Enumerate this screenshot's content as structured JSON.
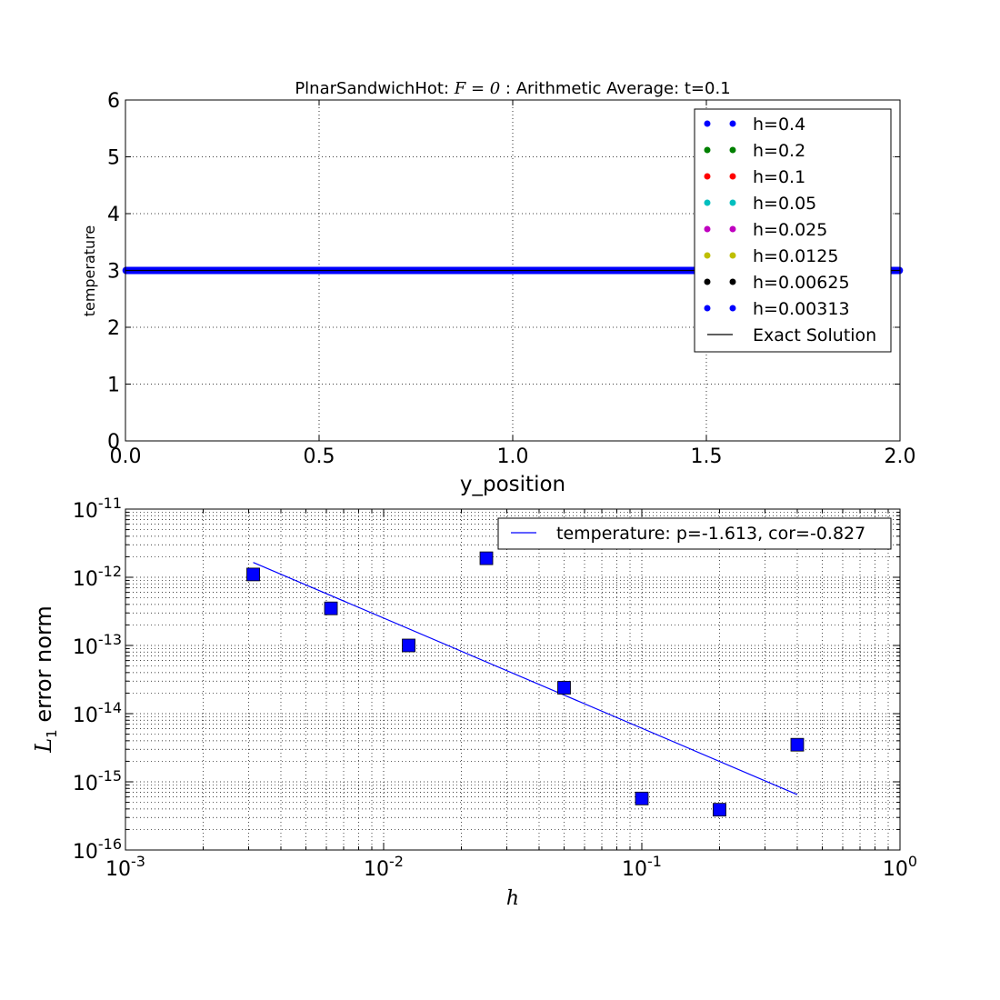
{
  "chart_data": [
    {
      "type": "scatter",
      "title": {
        "prefix": "PlnarSandwichHot: ",
        "math": "F = 0",
        "suffix": " : Arithmetic Average: t=0.1"
      },
      "xlabel": "y_position",
      "ylabel": "temperature",
      "xlim": [
        0,
        2
      ],
      "ylim": [
        0,
        6
      ],
      "xticks": [
        0,
        0.5,
        1,
        1.5,
        2
      ],
      "xtick_labels": [
        "0.0",
        "0.5",
        "1.0",
        "1.5",
        "2.0"
      ],
      "yticks": [
        0,
        1,
        2,
        3,
        4,
        5,
        6
      ],
      "ytick_labels": [
        "0",
        "1",
        "2",
        "3",
        "4",
        "5",
        "6"
      ],
      "grid": true,
      "legend_position": "top-right",
      "series": [
        {
          "name": "h=0.4",
          "color": "#0000ff",
          "marker": "dot",
          "h": 0.4,
          "y": 3.0
        },
        {
          "name": "h=0.2",
          "color": "#008000",
          "marker": "dot",
          "h": 0.2,
          "y": 3.0
        },
        {
          "name": "h=0.1",
          "color": "#ff0000",
          "marker": "dot",
          "h": 0.1,
          "y": 3.0
        },
        {
          "name": "h=0.05",
          "color": "#00bfbf",
          "marker": "dot",
          "h": 0.05,
          "y": 3.0
        },
        {
          "name": "h=0.025",
          "color": "#bf00bf",
          "marker": "dot",
          "h": 0.025,
          "y": 3.0
        },
        {
          "name": "h=0.0125",
          "color": "#bfbf00",
          "marker": "dot",
          "h": 0.0125,
          "y": 3.0
        },
        {
          "name": "h=0.00625",
          "color": "#000000",
          "marker": "dot",
          "h": 0.00625,
          "y": 3.0
        },
        {
          "name": "h=0.00313",
          "color": "#0000ff",
          "marker": "dot",
          "h": 0.003125,
          "y": 3.0
        },
        {
          "name": "Exact Solution",
          "color": "#000000",
          "marker": "line",
          "x": [
            0,
            2
          ],
          "y": [
            3.0,
            3.0
          ]
        }
      ]
    },
    {
      "type": "scatter",
      "title": "",
      "xlabel": "h",
      "ylabel": {
        "main": "L",
        "sub": "1",
        "rest": " error norm"
      },
      "xscale": "log",
      "yscale": "log",
      "xlim": [
        0.001,
        1
      ],
      "ylim": [
        1e-16,
        1e-11
      ],
      "xtick_exponents": [
        -3,
        -2,
        -1,
        0
      ],
      "ytick_exponents": [
        -16,
        -15,
        -14,
        -13,
        -12,
        -11
      ],
      "tick_base": "10",
      "grid": true,
      "legend_position": "top-right",
      "points": {
        "color": "#0000ff",
        "marker": "square",
        "x": [
          0.003125,
          0.00625,
          0.0125,
          0.025,
          0.05,
          0.1,
          0.2,
          0.4
        ],
        "y": [
          1.1e-12,
          3.5e-13,
          1e-13,
          1.9e-12,
          2.4e-14,
          5.7e-16,
          3.9e-16,
          3.5e-15
        ]
      },
      "fit": {
        "name": "temperature: p=-1.613, cor=-0.827",
        "color": "#0000ff",
        "x": [
          0.003125,
          0.4
        ],
        "y": [
          1.65e-12,
          6.5e-16
        ]
      }
    }
  ]
}
